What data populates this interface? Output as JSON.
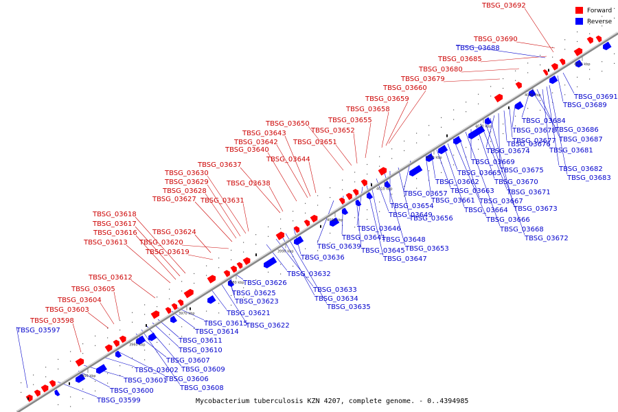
{
  "caption": "Mycobacterium tuberculosis KZN 4207, complete genome. - 0..4394985",
  "legend": {
    "forward": "Forward",
    "reverse": "Reverse"
  },
  "colors": {
    "forward": "#ff0000",
    "reverse": "#0000ff",
    "backbone": "#888888",
    "forward_label": "#cc0000",
    "reverse_label": "#0000cc"
  },
  "ticks": [
    "3950 kbp",
    "3960 kbp",
    "3970 kbp",
    "3980 kbp",
    "3990 kbp",
    "4000 kbp",
    "4010 kbp",
    "4020 kbp",
    "4030 kbp",
    "4040 kbp",
    "4050 kbp"
  ],
  "forward_labels": [
    "TBSG_03598",
    "TBSG_03603",
    "TBSG_03604",
    "TBSG_03605",
    "TBSG_03612",
    "TBSG_03613",
    "TBSG_03616",
    "TBSG_03617",
    "TBSG_03618",
    "TBSG_03619",
    "TBSG_03620",
    "TBSG_03624",
    "TBSG_03627",
    "TBSG_03628",
    "TBSG_03629",
    "TBSG_03630",
    "TBSG_03631",
    "TBSG_03637",
    "TBSG_03638",
    "TBSG_03640",
    "TBSG_03642",
    "TBSG_03643",
    "TBSG_03644",
    "TBSG_03650",
    "TBSG_03651",
    "TBSG_03652",
    "TBSG_03655",
    "TBSG_03658",
    "TBSG_03659",
    "TBSG_03660",
    "TBSG_03679",
    "TBSG_03680",
    "TBSG_03685",
    "TBSG_03690",
    "TBSG_03692"
  ],
  "reverse_labels": [
    "TBSG_03597",
    "TBSG_03599",
    "TBSG_03600",
    "TBSG_03601",
    "TBSG_03602",
    "TBSG_03606",
    "TBSG_03607",
    "TBSG_03608",
    "TBSG_03609",
    "TBSG_03610",
    "TBSG_03611",
    "TBSG_03614",
    "TBSG_03615",
    "TBSG_03621",
    "TBSG_03622",
    "TBSG_03623",
    "TBSG_03625",
    "TBSG_03626",
    "TBSG_03632",
    "TBSG_03633",
    "TBSG_03634",
    "TBSG_03635",
    "TBSG_03636",
    "TBSG_03639",
    "TBSG_03641",
    "TBSG_03645",
    "TBSG_03646",
    "TBSG_03647",
    "TBSG_03648",
    "TBSG_03649",
    "TBSG_03653",
    "TBSG_03654",
    "TBSG_03656",
    "TBSG_03657",
    "TBSG_03661",
    "TBSG_03662",
    "TBSG_03663",
    "TBSG_03664",
    "TBSG_03665",
    "TBSG_03666",
    "TBSG_03667",
    "TBSG_03668",
    "TBSG_03669",
    "TBSG_03670",
    "TBSG_03671",
    "TBSG_03672",
    "TBSG_03673",
    "TBSG_03674",
    "TBSG_03675",
    "TBSG_03676",
    "TBSG_03677",
    "TBSG_03678",
    "TBSG_03681",
    "TBSG_03682",
    "TBSG_03683",
    "TBSG_03684",
    "TBSG_03686",
    "TBSG_03687",
    "TBSG_03688",
    "TBSG_03689",
    "TBSG_03691"
  ]
}
